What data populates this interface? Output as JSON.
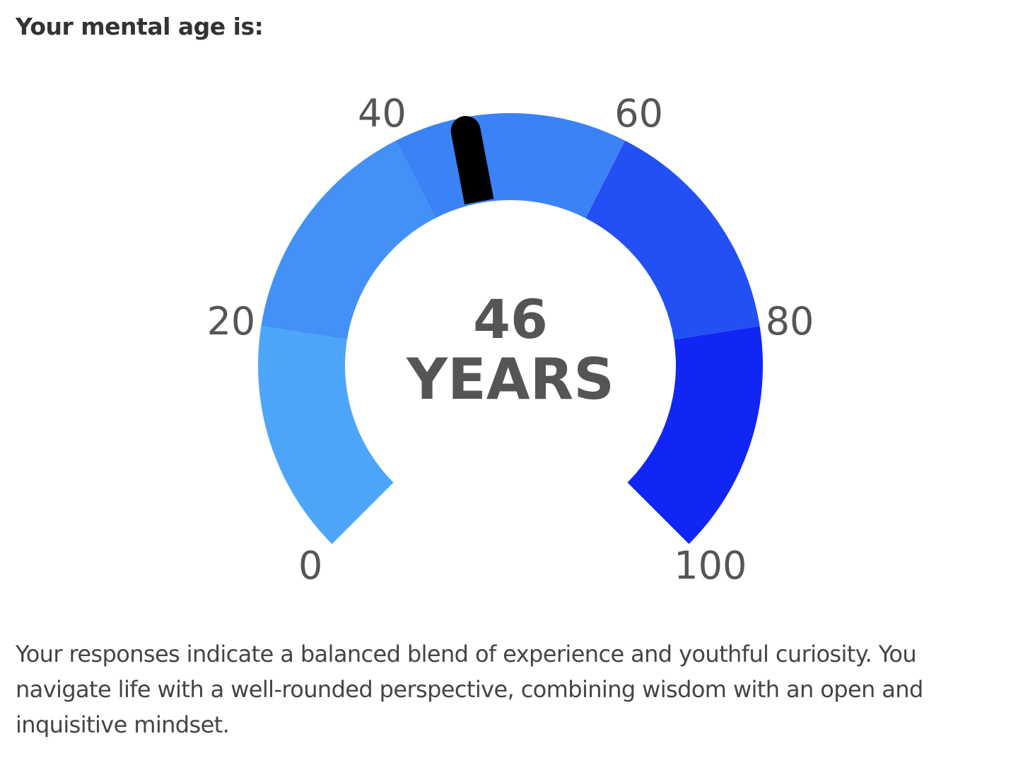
{
  "heading": "Your mental age is:",
  "chart_data": {
    "type": "gauge",
    "value": 46,
    "unit_label": "YEARS",
    "ylim": [
      0,
      100
    ],
    "yticks": [
      0,
      20,
      40,
      60,
      80,
      100
    ],
    "needle_color": "#000000",
    "bands": [
      {
        "from": 0,
        "to": 20,
        "color": "#4da5fa"
      },
      {
        "from": 20,
        "to": 40,
        "color": "#4391f7"
      },
      {
        "from": 40,
        "to": 60,
        "color": "#3b82f6"
      },
      {
        "from": 60,
        "to": 80,
        "color": "#2250f4"
      },
      {
        "from": 80,
        "to": 100,
        "color": "#1126f5"
      }
    ]
  },
  "description": "Your responses indicate a balanced blend of experience and youthful curiosity. You navigate life with a well-rounded perspective, combining wisdom with an open and inquisitive mindset."
}
